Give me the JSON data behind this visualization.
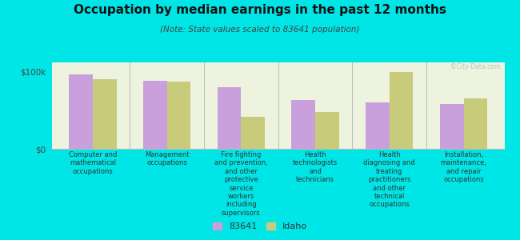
{
  "title": "Occupation by median earnings in the past 12 months",
  "subtitle": "(Note: State values scaled to 83641 population)",
  "background_color": "#00e5e5",
  "plot_bg_color": "#eef3e0",
  "categories": [
    "Computer and\nmathematical\noccupations",
    "Management\noccupations",
    "Fire fighting\nand prevention,\nand other\nprotective\nservice\nworkers\nincluding\nsupervisors",
    "Health\ntechnologists\nand\ntechnicians",
    "Health\ndiagnosing and\ntreating\npractitioners\nand other\ntechnical\noccupations",
    "Installation,\nmaintenance,\nand repair\noccupations"
  ],
  "values_83641": [
    96000,
    88000,
    80000,
    63000,
    60000,
    58000
  ],
  "values_idaho": [
    90000,
    87000,
    42000,
    48000,
    100000,
    65000
  ],
  "color_83641": "#c9a0dc",
  "color_idaho": "#c8cc7a",
  "ylabel_ticks": [
    "$0",
    "$100k"
  ],
  "ytick_vals": [
    0,
    100000
  ],
  "ylim": [
    0,
    112000
  ],
  "legend_labels": [
    "83641",
    "Idaho"
  ],
  "watermark": "©City-Data.com"
}
